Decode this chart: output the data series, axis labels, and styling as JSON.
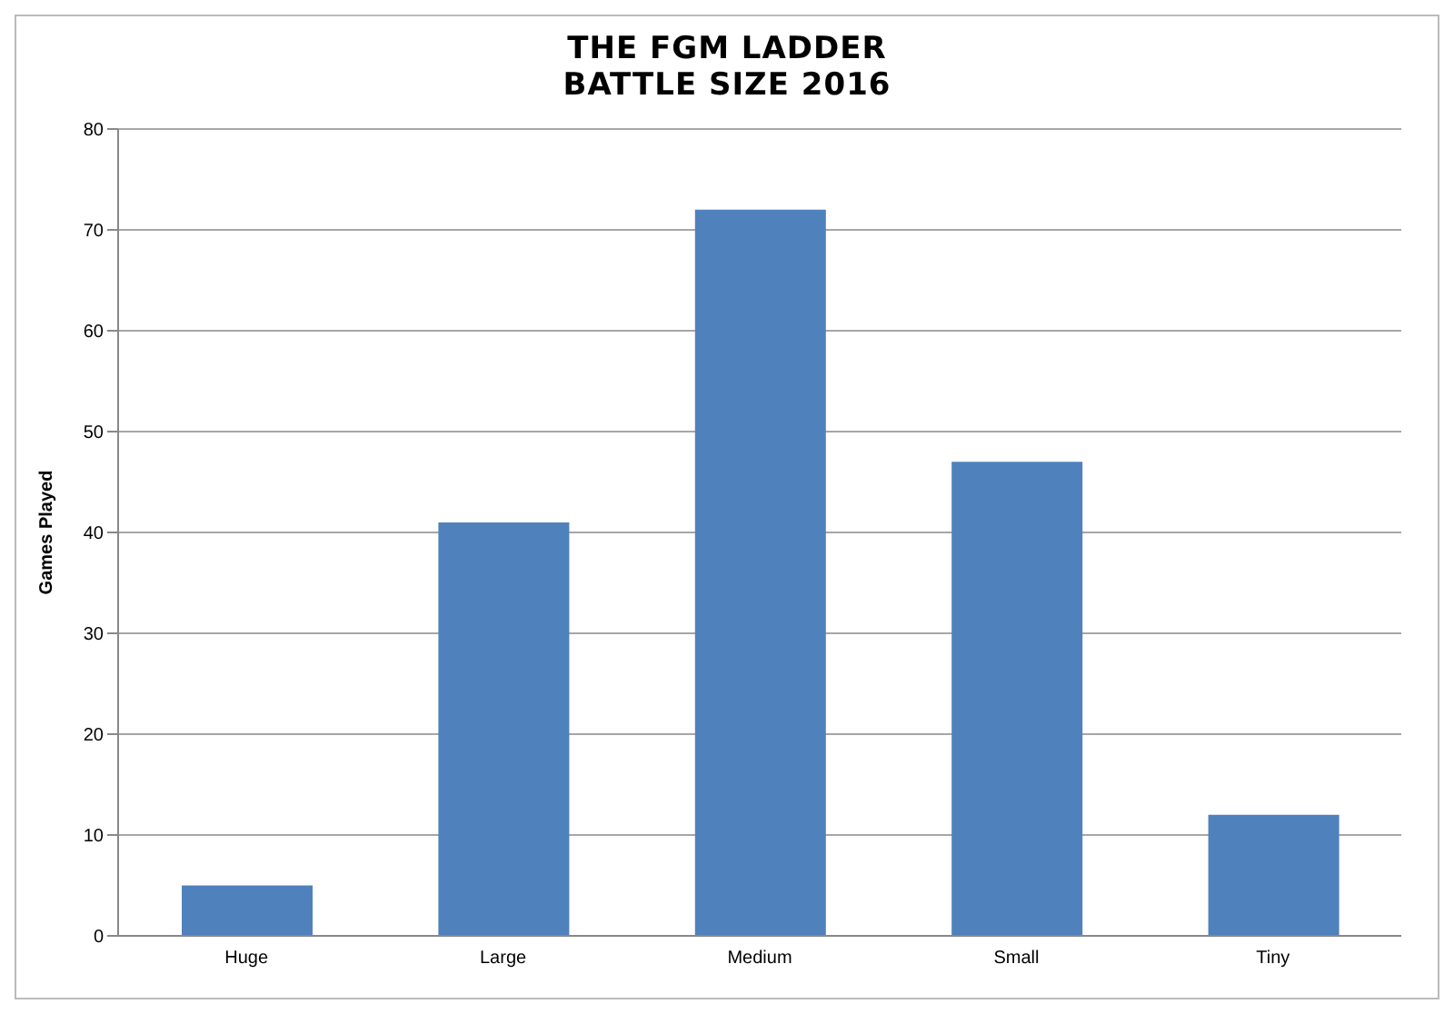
{
  "chart_data": {
    "type": "bar",
    "title": "THE FGM LADDER\nBATTLE SIZE 2016",
    "ylabel": "Games Played",
    "categories": [
      "Huge",
      "Large",
      "Medium",
      "Small",
      "Tiny"
    ],
    "values": [
      5,
      41,
      72,
      47,
      12
    ],
    "color": "#4f81bd",
    "ylim": [
      0,
      80
    ],
    "yticks": [
      0,
      10,
      20,
      30,
      40,
      50,
      60,
      70,
      80
    ],
    "grid": "y"
  }
}
